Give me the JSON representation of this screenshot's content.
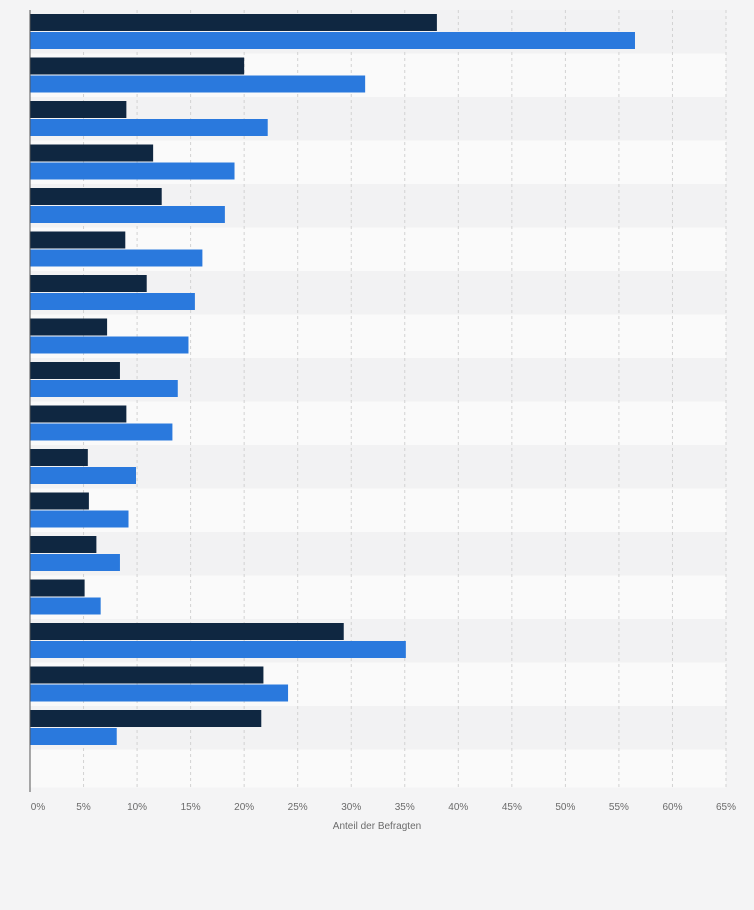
{
  "chart_data": {
    "type": "bar",
    "orientation": "horizontal",
    "title": "",
    "xlabel": "Anteil der Befragten",
    "ylabel": "",
    "xlim": [
      0,
      65
    ],
    "x_ticks": [
      "0%",
      "5%",
      "10%",
      "15%",
      "20%",
      "25%",
      "30%",
      "35%",
      "40%",
      "45%",
      "50%",
      "55%",
      "60%",
      "65%"
    ],
    "grid": true,
    "legend": "none",
    "categories": [
      "",
      "",
      "",
      "",
      "",
      "",
      "",
      "",
      "",
      "",
      "",
      "",
      "",
      "",
      "",
      "",
      ""
    ],
    "series": [
      {
        "color": "#0f2741",
        "values": [
          38,
          20,
          9,
          11.5,
          12.3,
          8.9,
          10.9,
          7.2,
          8.4,
          9,
          5.4,
          5.5,
          6.2,
          5.1,
          29.3,
          21.8,
          21.6
        ]
      },
      {
        "color": "#2a79dd",
        "values": [
          56.5,
          31.3,
          22.2,
          19.1,
          18.2,
          16.1,
          15.4,
          14.8,
          13.8,
          13.3,
          9.9,
          9.2,
          8.4,
          6.6,
          35.1,
          24.1,
          8.1
        ]
      }
    ]
  }
}
